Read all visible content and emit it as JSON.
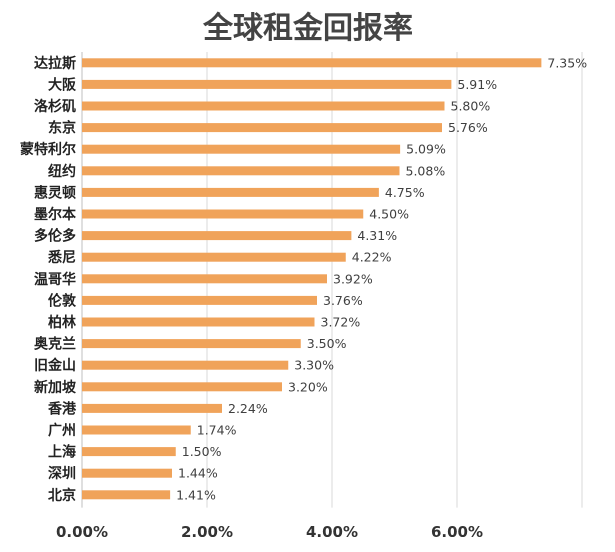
{
  "chart_data": {
    "type": "bar",
    "orientation": "horizontal",
    "title": "全球租金回报率",
    "categories": [
      "达拉斯",
      "大阪",
      "洛杉矶",
      "东京",
      "蒙特利尔",
      "纽约",
      "惠灵顿",
      "墨尔本",
      "多伦多",
      "悉尼",
      "温哥华",
      "伦敦",
      "柏林",
      "奥克兰",
      "旧金山",
      "新加坡",
      "香港",
      "广州",
      "上海",
      "深圳",
      "北京"
    ],
    "values": [
      7.35,
      5.91,
      5.8,
      5.76,
      5.09,
      5.08,
      4.75,
      4.5,
      4.31,
      4.22,
      3.92,
      3.76,
      3.72,
      3.5,
      3.3,
      3.2,
      2.24,
      1.74,
      1.5,
      1.44,
      1.41
    ],
    "data_labels": [
      "7.35%",
      "5.91%",
      "5.80%",
      "5.76%",
      "5.09%",
      "5.08%",
      "4.75%",
      "4.50%",
      "4.31%",
      "4.22%",
      "3.92%",
      "3.76%",
      "3.72%",
      "3.50%",
      "3.30%",
      "3.20%",
      "2.24%",
      "1.74%",
      "1.50%",
      "1.44%",
      "1.41%"
    ],
    "x_ticks": [
      "0.00%",
      "2.00%",
      "4.00%",
      "6.00%"
    ],
    "xlim": [
      0,
      8
    ],
    "grid": true,
    "legend": "none",
    "bar_color": "#F0A35A"
  }
}
